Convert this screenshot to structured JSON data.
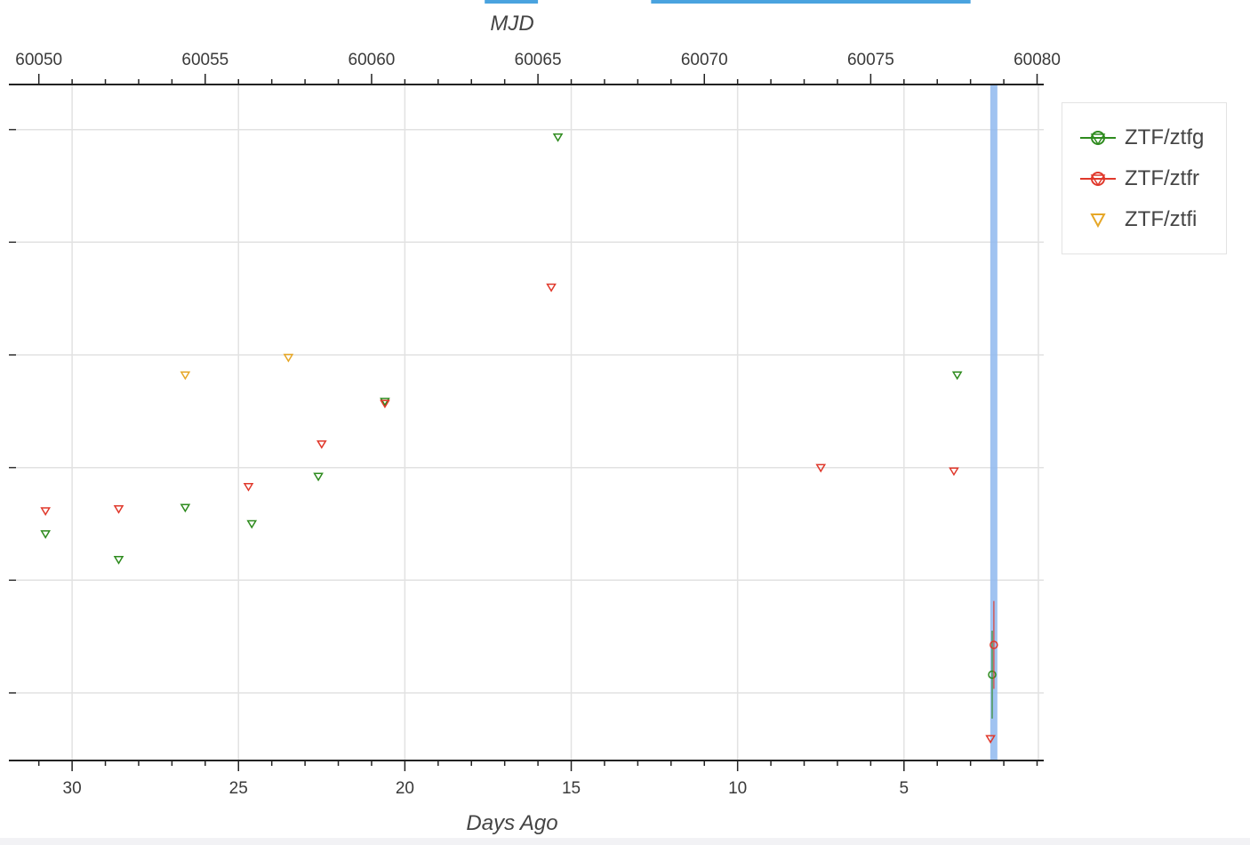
{
  "chart_data": {
    "type": "scatter",
    "top_axis": {
      "label": "MJD",
      "range": [
        60049.1,
        60080.2
      ],
      "ticks": [
        60050,
        60055,
        60060,
        60065,
        60070,
        60075,
        60080
      ]
    },
    "bottom_axis": {
      "label": "Days Ago",
      "range": [
        31.9,
        0.8
      ],
      "ticks": [
        30,
        25,
        20,
        15,
        10,
        5
      ]
    },
    "y_range": [
      0,
      1
    ],
    "y_tick_labels_shown": false,
    "grid": true,
    "legend_position": "right",
    "highlight_band_days_ago": 2.3,
    "top_band_indicators_mjd": [
      [
        60063.4,
        60065.0
      ],
      [
        60068.4,
        60078.0
      ]
    ],
    "series": [
      {
        "name": "ZTF/ztfg",
        "color": "#2e8b1e",
        "marker": "triangle-down",
        "upper_limits": [
          {
            "x": 30.8,
            "y": 0.335
          },
          {
            "x": 28.6,
            "y": 0.297
          },
          {
            "x": 26.6,
            "y": 0.374
          },
          {
            "x": 24.6,
            "y": 0.35
          },
          {
            "x": 22.6,
            "y": 0.42
          },
          {
            "x": 20.6,
            "y": 0.531
          },
          {
            "x": 15.4,
            "y": 0.922
          },
          {
            "x": 3.4,
            "y": 0.57
          }
        ],
        "detections": [
          {
            "x": 2.35,
            "y": 0.127,
            "err": 0.065
          }
        ]
      },
      {
        "name": "ZTF/ztfr",
        "color": "#e0382b",
        "marker": "triangle-down",
        "upper_limits": [
          {
            "x": 30.8,
            "y": 0.369
          },
          {
            "x": 28.6,
            "y": 0.372
          },
          {
            "x": 24.7,
            "y": 0.405
          },
          {
            "x": 22.5,
            "y": 0.468
          },
          {
            "x": 20.6,
            "y": 0.528
          },
          {
            "x": 15.6,
            "y": 0.7
          },
          {
            "x": 7.5,
            "y": 0.433
          },
          {
            "x": 3.5,
            "y": 0.428
          },
          {
            "x": 2.4,
            "y": 0.032
          }
        ],
        "detections": [
          {
            "x": 2.3,
            "y": 0.171,
            "err": 0.065
          }
        ]
      },
      {
        "name": "ZTF/ztfi",
        "color": "#e6a727",
        "marker": "triangle-down",
        "upper_limits": [
          {
            "x": 26.6,
            "y": 0.57
          },
          {
            "x": 23.5,
            "y": 0.596
          }
        ],
        "detections": []
      }
    ]
  }
}
